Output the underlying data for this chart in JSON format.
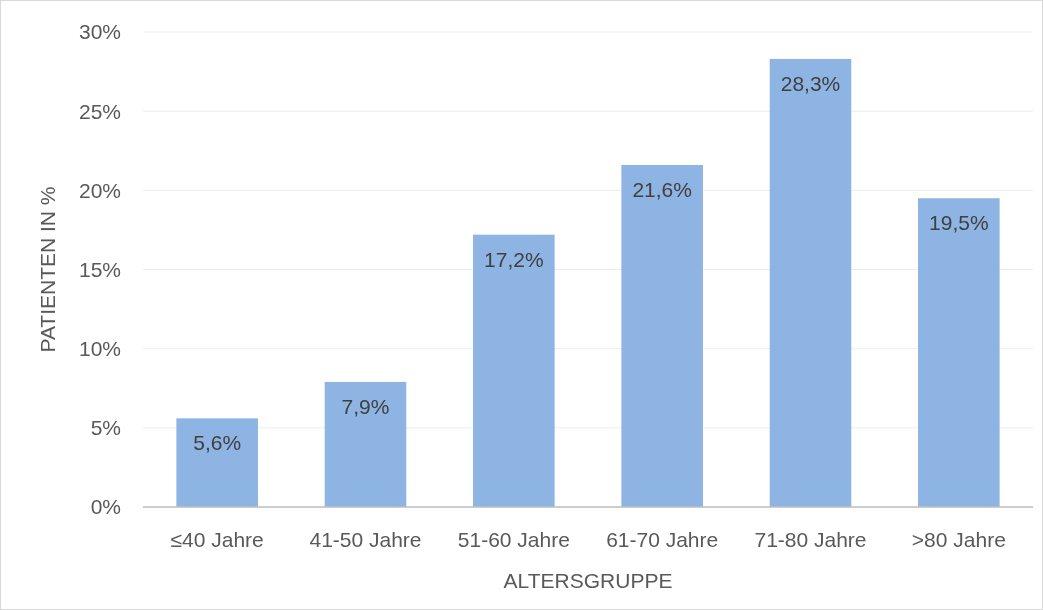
{
  "chart_data": {
    "type": "bar",
    "categories": [
      "≤40 Jahre",
      "41-50 Jahre",
      "51-60 Jahre",
      "61-70 Jahre",
      "71-80 Jahre",
      ">80 Jahre"
    ],
    "values": [
      5.6,
      7.9,
      17.2,
      21.6,
      28.3,
      19.5
    ],
    "value_labels": [
      "5,6%",
      "7,9%",
      "17,2%",
      "21,6%",
      "28,3%",
      "19,5%"
    ],
    "color": "#8db4e2",
    "xlabel": "ALTERSGRUPPE",
    "ylabel": "PATIENTEN IN %",
    "ylim": [
      0,
      30
    ],
    "yticks": [
      {
        "value": 0,
        "label": "0%"
      },
      {
        "value": 5,
        "label": "5%"
      },
      {
        "value": 10,
        "label": "10%"
      },
      {
        "value": 15,
        "label": "15%"
      },
      {
        "value": 20,
        "label": "20%"
      },
      {
        "value": 25,
        "label": "25%"
      },
      {
        "value": 30,
        "label": "30%"
      }
    ],
    "grid": "y"
  }
}
